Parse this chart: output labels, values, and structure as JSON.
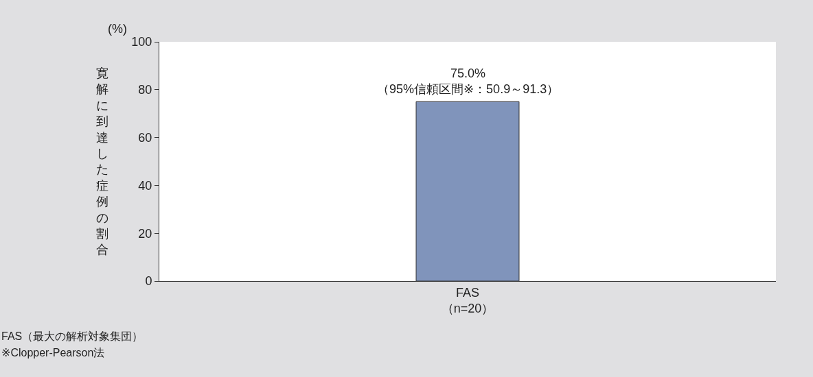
{
  "chart_data": {
    "type": "bar",
    "ylabel": "寛解に到達した症例の割合",
    "categories": [
      "FAS\n（n=20）"
    ],
    "values": [
      75.0
    ],
    "value_labels": [
      "75.0%\n（95%信頼区間※：50.9～91.3）"
    ],
    "color": "#8094bb",
    "ylim": [
      0,
      100
    ],
    "yticks": [
      0,
      20,
      40,
      60,
      80,
      100
    ],
    "annotations": [
      "(%)",
      "FAS（最大の解析対象集団）",
      "※Clopper-Pearson法"
    ]
  }
}
